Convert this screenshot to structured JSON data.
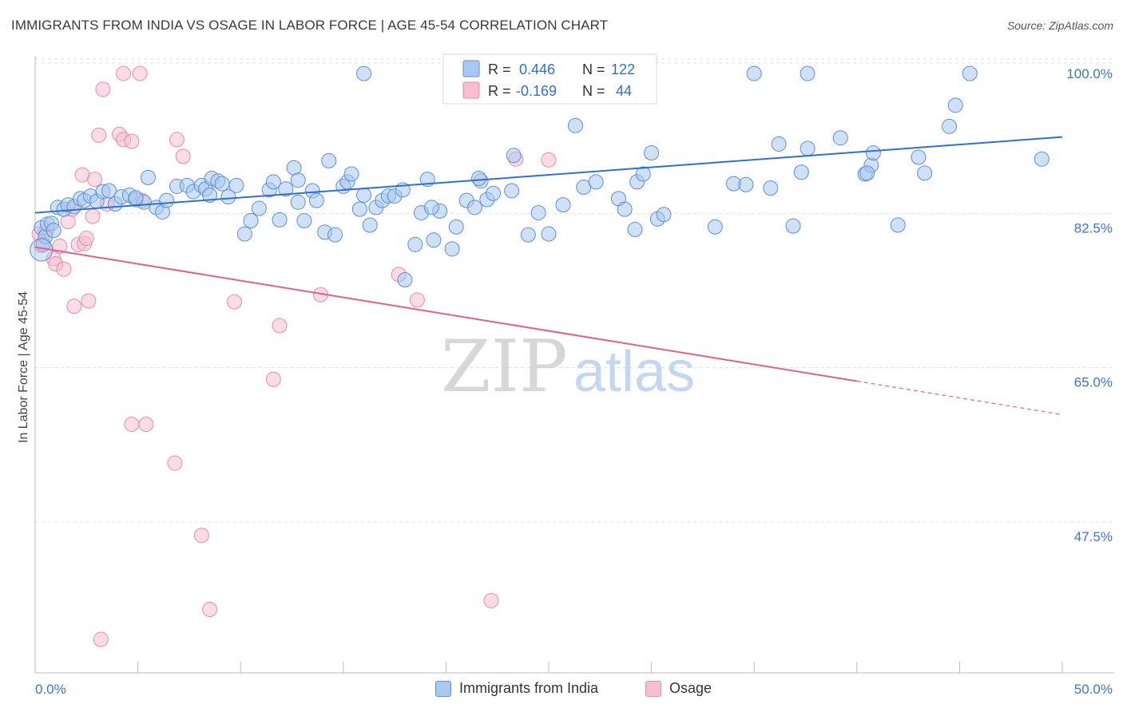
{
  "header": {
    "title": "IMMIGRANTS FROM INDIA VS OSAGE IN LABOR FORCE | AGE 45-54 CORRELATION CHART",
    "source": "Source: ZipAtlas.com"
  },
  "watermark": {
    "zip": "ZIP",
    "atlas": "atlas"
  },
  "legend_box": {
    "rows": [
      {
        "r_label": "R =",
        "r_value": "0.446",
        "n_label": "N =",
        "n_value": "122"
      },
      {
        "r_label": "R =",
        "r_value": "-0.169",
        "n_label": "N =",
        "n_value": "44"
      }
    ]
  },
  "colors": {
    "blue_fill": "#a9c8f0",
    "blue_stroke": "#5b8fd6",
    "blue_line": "#2f6fd0",
    "pink_fill": "#f6bfd0",
    "pink_stroke": "#e88aa8",
    "pink_line": "#e0608e",
    "grid": "#dddddd",
    "axis_label": "#3d74c8"
  },
  "chart_data": {
    "type": "scatter",
    "title": "IMMIGRANTS FROM INDIA VS OSAGE IN LABOR FORCE | AGE 45-54 CORRELATION CHART",
    "xlabel": "",
    "ylabel": "In Labor Force | Age 45-54",
    "xlim": [
      0,
      50
    ],
    "ylim": [
      32,
      102
    ],
    "x_tick_labels": [
      "0.0%",
      "50.0%"
    ],
    "y_ticks": [
      47.5,
      65.0,
      82.5,
      100.0
    ],
    "y_tick_labels": [
      "47.5%",
      "65.0%",
      "82.5%",
      "100.0%"
    ],
    "grid": true,
    "legend_position": "top-center",
    "series": [
      {
        "name": "Immigrants from India",
        "color": "#a9c8f0",
        "r": 0.446,
        "n": 122,
        "trend": {
          "x": [
            0,
            50
          ],
          "y": [
            84.2,
            92.8
          ]
        },
        "points": [
          [
            0.3,
            82.5
          ],
          [
            0.4,
            80.6
          ],
          [
            0.5,
            81.5
          ],
          [
            0.6,
            82.9
          ],
          [
            0.8,
            83.0
          ],
          [
            0.9,
            82.2
          ],
          [
            1.1,
            84.8
          ],
          [
            1.4,
            84.6
          ],
          [
            1.6,
            85.1
          ],
          [
            1.9,
            84.9
          ],
          [
            2.2,
            85.8
          ],
          [
            2.4,
            85.6
          ],
          [
            2.7,
            86.1
          ],
          [
            3.0,
            85.5
          ],
          [
            3.3,
            86.6
          ],
          [
            3.6,
            86.7
          ],
          [
            3.9,
            85.2
          ],
          [
            4.2,
            86.0
          ],
          [
            4.6,
            86.2
          ],
          [
            4.9,
            85.7
          ],
          [
            5.3,
            85.4
          ],
          [
            5.5,
            88.2
          ],
          [
            5.9,
            84.8
          ],
          [
            6.2,
            84.3
          ],
          [
            6.4,
            85.6
          ],
          [
            6.9,
            87.2
          ],
          [
            7.4,
            87.3
          ],
          [
            7.7,
            86.6
          ],
          [
            8.1,
            87.3
          ],
          [
            8.3,
            86.9
          ],
          [
            8.6,
            88.1
          ],
          [
            8.9,
            87.8
          ],
          [
            9.1,
            87.5
          ],
          [
            9.4,
            86.0
          ],
          [
            9.8,
            87.3
          ],
          [
            10.2,
            81.8
          ],
          [
            10.5,
            83.3
          ],
          [
            10.9,
            84.7
          ],
          [
            11.4,
            86.8
          ],
          [
            11.6,
            87.7
          ],
          [
            11.9,
            83.4
          ],
          [
            12.2,
            86.9
          ],
          [
            12.6,
            89.3
          ],
          [
            12.8,
            87.9
          ],
          [
            13.1,
            83.3
          ],
          [
            13.5,
            86.7
          ],
          [
            13.7,
            85.6
          ],
          [
            14.1,
            82.0
          ],
          [
            14.3,
            90.1
          ],
          [
            14.6,
            81.7
          ],
          [
            15.0,
            87.2
          ],
          [
            15.2,
            87.7
          ],
          [
            15.4,
            88.6
          ],
          [
            15.8,
            84.6
          ],
          [
            16.0,
            86.2
          ],
          [
            16.3,
            82.8
          ],
          [
            16.6,
            84.8
          ],
          [
            16.9,
            85.6
          ],
          [
            17.2,
            86.1
          ],
          [
            17.5,
            86.1
          ],
          [
            17.9,
            86.8
          ],
          [
            18.0,
            76.6
          ],
          [
            18.5,
            80.6
          ],
          [
            18.8,
            84.2
          ],
          [
            19.1,
            88.0
          ],
          [
            19.4,
            81.1
          ],
          [
            19.7,
            84.4
          ],
          [
            20.3,
            80.1
          ],
          [
            20.5,
            82.6
          ],
          [
            21.0,
            85.6
          ],
          [
            21.4,
            84.8
          ],
          [
            21.7,
            87.8
          ],
          [
            22.0,
            85.7
          ],
          [
            22.3,
            86.4
          ],
          [
            23.2,
            86.7
          ],
          [
            23.3,
            90.7
          ],
          [
            24.0,
            81.7
          ],
          [
            24.5,
            84.2
          ],
          [
            25.0,
            81.8
          ],
          [
            25.7,
            85.1
          ],
          [
            26.3,
            94.1
          ],
          [
            26.7,
            87.1
          ],
          [
            27.3,
            87.7
          ],
          [
            28.4,
            85.8
          ],
          [
            28.7,
            84.6
          ],
          [
            29.3,
            87.7
          ],
          [
            29.6,
            88.6
          ],
          [
            30.0,
            91.0
          ],
          [
            30.3,
            83.5
          ],
          [
            30.6,
            84.0
          ],
          [
            34.0,
            87.5
          ],
          [
            34.6,
            87.4
          ],
          [
            35.8,
            87.0
          ],
          [
            36.2,
            92.0
          ],
          [
            36.9,
            82.7
          ],
          [
            37.3,
            88.8
          ],
          [
            37.6,
            91.5
          ],
          [
            39.2,
            92.7
          ],
          [
            40.4,
            88.6
          ],
          [
            40.7,
            89.6
          ],
          [
            40.8,
            91.0
          ],
          [
            43.0,
            90.5
          ],
          [
            43.3,
            88.7
          ],
          [
            35.0,
            100.0
          ],
          [
            37.6,
            100.0
          ],
          [
            45.5,
            100.0
          ],
          [
            26.7,
            100.0
          ],
          [
            16.0,
            100.0
          ],
          [
            20.6,
            100.0
          ],
          [
            40.5,
            88.7
          ],
          [
            44.8,
            96.4
          ],
          [
            44.5,
            94.0
          ],
          [
            49.0,
            90.3
          ],
          [
            42.0,
            82.8
          ],
          [
            19.3,
            84.8
          ],
          [
            21.6,
            88.1
          ],
          [
            29.2,
            82.3
          ],
          [
            33.1,
            82.6
          ],
          [
            12.8,
            85.4
          ],
          [
            8.5,
            86.2
          ],
          [
            4.9,
            85.9
          ]
        ]
      },
      {
        "name": "Osage",
        "color": "#f6bfd0",
        "r": -0.169,
        "n": 44,
        "trend": {
          "x": [
            0,
            40
          ],
          "y": [
            80.3,
            65.1
          ],
          "dashed_to": [
            50,
            61.3
          ]
        },
        "points": [
          [
            0.2,
            81.8
          ],
          [
            0.3,
            80.5
          ],
          [
            0.5,
            82.0
          ],
          [
            0.6,
            82.3
          ],
          [
            0.9,
            79.0
          ],
          [
            1.0,
            78.4
          ],
          [
            1.2,
            80.4
          ],
          [
            1.4,
            77.8
          ],
          [
            1.6,
            83.2
          ],
          [
            1.8,
            84.6
          ],
          [
            1.9,
            73.6
          ],
          [
            2.1,
            80.6
          ],
          [
            2.3,
            88.5
          ],
          [
            2.4,
            80.7
          ],
          [
            2.5,
            81.3
          ],
          [
            2.6,
            74.2
          ],
          [
            2.8,
            83.8
          ],
          [
            2.9,
            88.0
          ],
          [
            3.1,
            93.0
          ],
          [
            3.3,
            98.2
          ],
          [
            3.5,
            85.2
          ],
          [
            4.1,
            93.1
          ],
          [
            4.3,
            92.5
          ],
          [
            4.7,
            92.3
          ],
          [
            4.7,
            60.2
          ],
          [
            5.4,
            60.2
          ],
          [
            5.2,
            85.6
          ],
          [
            6.8,
            55.8
          ],
          [
            6.9,
            92.5
          ],
          [
            7.2,
            90.6
          ],
          [
            8.1,
            47.6
          ],
          [
            8.5,
            39.2
          ],
          [
            9.7,
            74.1
          ],
          [
            11.6,
            65.3
          ],
          [
            11.9,
            71.4
          ],
          [
            13.9,
            74.9
          ],
          [
            17.7,
            77.2
          ],
          [
            18.6,
            74.3
          ],
          [
            22.2,
            40.2
          ],
          [
            23.4,
            90.3
          ],
          [
            25.0,
            90.2
          ],
          [
            3.2,
            35.8
          ],
          [
            4.3,
            100.0
          ],
          [
            5.1,
            100.0
          ]
        ]
      }
    ]
  },
  "bottom_legend": {
    "items": [
      {
        "label": "Immigrants from India"
      },
      {
        "label": "Osage"
      }
    ]
  }
}
